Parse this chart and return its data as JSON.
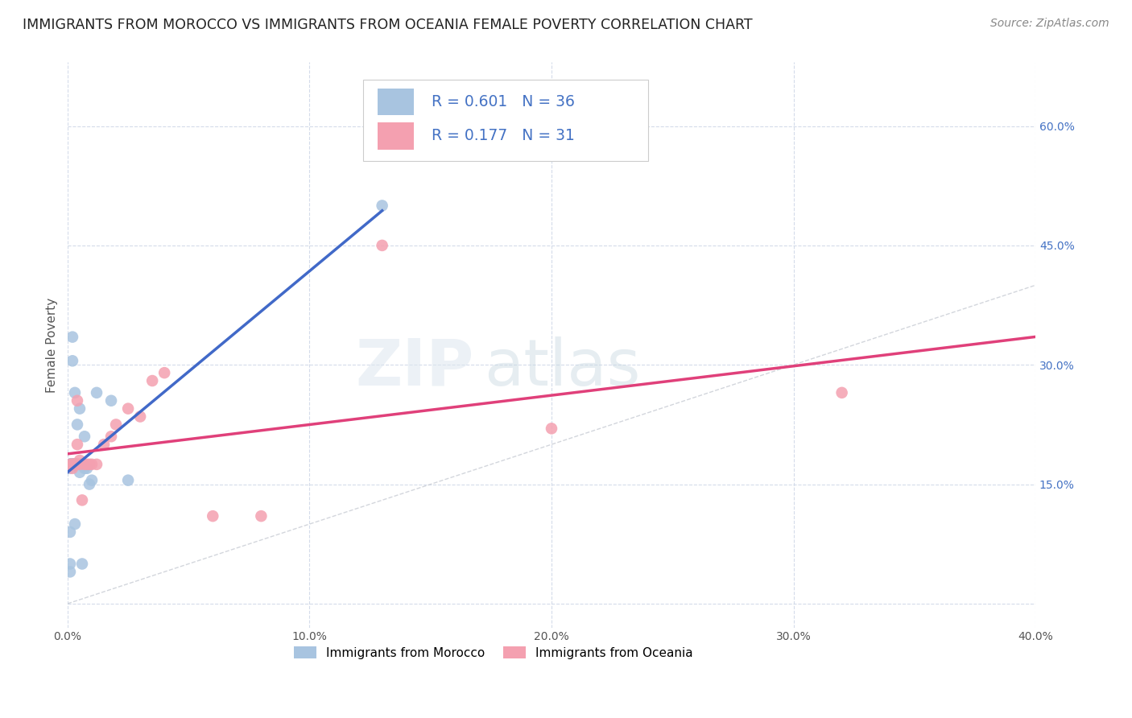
{
  "title": "IMMIGRANTS FROM MOROCCO VS IMMIGRANTS FROM OCEANIA FEMALE POVERTY CORRELATION CHART",
  "source": "Source: ZipAtlas.com",
  "ylabel": "Female Poverty",
  "xlim": [
    0.0,
    0.4
  ],
  "ylim": [
    -0.03,
    0.68
  ],
  "xticks": [
    0.0,
    0.1,
    0.2,
    0.3,
    0.4
  ],
  "yticks": [
    0.0,
    0.15,
    0.3,
    0.45,
    0.6
  ],
  "xtick_labels": [
    "0.0%",
    "10.0%",
    "20.0%",
    "30.0%",
    "40.0%"
  ],
  "ytick_labels_right": [
    "15.0%",
    "30.0%",
    "45.0%",
    "60.0%"
  ],
  "yticks_right": [
    0.15,
    0.3,
    0.45,
    0.6
  ],
  "morocco_R": 0.601,
  "morocco_N": 36,
  "oceania_R": 0.177,
  "oceania_N": 31,
  "morocco_color": "#a8c4e0",
  "oceania_color": "#f4a0b0",
  "morocco_line_color": "#4169c8",
  "oceania_line_color": "#e0407a",
  "diagonal_color": "#c8ccd4",
  "legend_text_color": "#4472c4",
  "background_color": "#ffffff",
  "morocco_x": [
    0.001,
    0.001,
    0.001,
    0.001,
    0.001,
    0.001,
    0.001,
    0.001,
    0.002,
    0.002,
    0.002,
    0.002,
    0.002,
    0.002,
    0.002,
    0.003,
    0.003,
    0.003,
    0.003,
    0.003,
    0.004,
    0.004,
    0.004,
    0.005,
    0.005,
    0.006,
    0.006,
    0.007,
    0.007,
    0.008,
    0.009,
    0.01,
    0.012,
    0.018,
    0.025,
    0.13
  ],
  "morocco_y": [
    0.175,
    0.175,
    0.17,
    0.175,
    0.175,
    0.09,
    0.05,
    0.04,
    0.175,
    0.175,
    0.175,
    0.175,
    0.175,
    0.335,
    0.305,
    0.175,
    0.175,
    0.1,
    0.175,
    0.265,
    0.175,
    0.175,
    0.225,
    0.165,
    0.245,
    0.175,
    0.05,
    0.17,
    0.21,
    0.17,
    0.15,
    0.155,
    0.265,
    0.255,
    0.155,
    0.5
  ],
  "oceania_x": [
    0.001,
    0.002,
    0.002,
    0.002,
    0.003,
    0.003,
    0.003,
    0.004,
    0.004,
    0.005,
    0.005,
    0.006,
    0.007,
    0.008,
    0.009,
    0.01,
    0.012,
    0.015,
    0.018,
    0.02,
    0.025,
    0.03,
    0.035,
    0.04,
    0.06,
    0.08,
    0.13,
    0.2,
    0.32,
    0.003,
    0.004
  ],
  "oceania_y": [
    0.175,
    0.175,
    0.175,
    0.17,
    0.175,
    0.175,
    0.175,
    0.175,
    0.2,
    0.175,
    0.18,
    0.13,
    0.175,
    0.175,
    0.175,
    0.175,
    0.175,
    0.2,
    0.21,
    0.225,
    0.245,
    0.235,
    0.28,
    0.29,
    0.11,
    0.11,
    0.45,
    0.22,
    0.265,
    0.175,
    0.255
  ]
}
